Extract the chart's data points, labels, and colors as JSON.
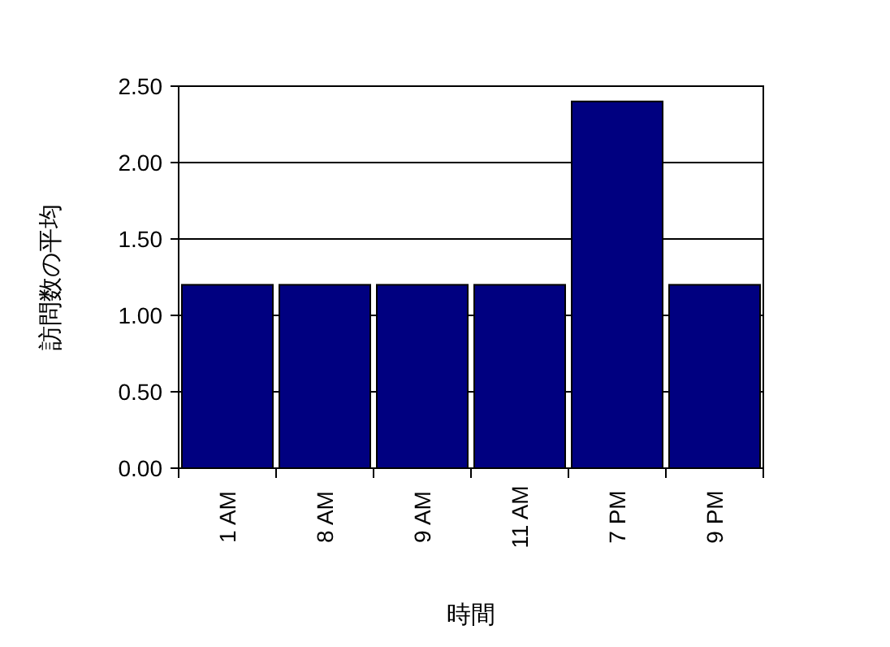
{
  "chart_data": {
    "type": "bar",
    "xlabel": "時間",
    "ylabel": "訪問数の平均",
    "categories": [
      "1 AM",
      "8 AM",
      "9 AM",
      "11 AM",
      "7 PM",
      "9 PM"
    ],
    "series": [
      {
        "color": "#000080",
        "values": [
          1.2,
          1.2,
          1.2,
          1.2,
          2.4,
          1.2
        ]
      }
    ],
    "ylim": [
      0,
      2.5
    ],
    "yticks": [
      {
        "value": 0,
        "label": "0.00"
      },
      {
        "value": 0.5,
        "label": "0.50"
      },
      {
        "value": 1,
        "label": "1.00"
      },
      {
        "value": 1.5,
        "label": "1.50"
      },
      {
        "value": 2,
        "label": "2.00"
      },
      {
        "value": 2.5,
        "label": "2.50"
      }
    ],
    "grid": "y"
  }
}
